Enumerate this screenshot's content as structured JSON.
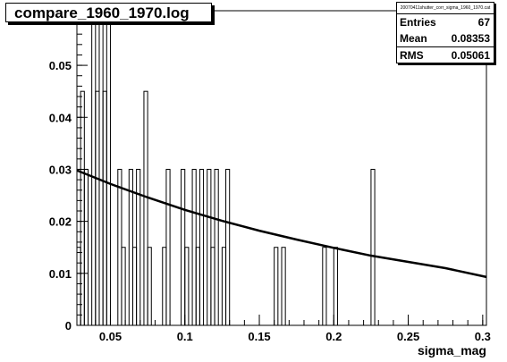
{
  "title": "compare_1960_1970.log",
  "stats": {
    "name": "20070411shutter_corr_sigma_1960_1970.cat",
    "rows": [
      {
        "label": "Entries",
        "value": "67"
      },
      {
        "label": "Mean",
        "value": "0.08353"
      },
      {
        "label": "RMS",
        "value": "0.05061"
      }
    ]
  },
  "chart_data": {
    "type": "histogram",
    "xlabel": "sigma_mag",
    "ylabel": "",
    "xlim": [
      0.0275,
      0.3025
    ],
    "ylim": [
      0,
      0.0605
    ],
    "xticks": [
      0.05,
      0.1,
      0.15,
      0.2,
      0.25,
      0.3
    ],
    "xtick_labels": [
      "0.05",
      "0.1",
      "0.15",
      "0.2",
      "0.25",
      "0.3"
    ],
    "yticks": [
      0,
      0.01,
      0.02,
      0.03,
      0.04,
      0.05,
      0.06
    ],
    "ytick_labels": [
      "0",
      "0.01",
      "0.02",
      "0.03",
      "0.04",
      "0.05",
      "0.06"
    ],
    "grid": false,
    "bin_edges": [
      0.0275,
      0.03,
      0.0325,
      0.035,
      0.0375,
      0.04,
      0.0425,
      0.045,
      0.0475,
      0.05,
      0.0525,
      0.055,
      0.0575,
      0.06,
      0.0625,
      0.065,
      0.0675,
      0.07,
      0.0725,
      0.075,
      0.0775,
      0.08,
      0.0825,
      0.085,
      0.0875,
      0.09,
      0.0925,
      0.095,
      0.0975,
      0.1,
      0.1025,
      0.105,
      0.1075,
      0.11,
      0.1125,
      0.115,
      0.1175,
      0.12,
      0.1225,
      0.125,
      0.1275,
      0.13,
      0.1325,
      0.135,
      0.1375,
      0.14,
      0.1425,
      0.145,
      0.1475,
      0.15,
      0.1525,
      0.155,
      0.1575,
      0.16,
      0.1625,
      0.165,
      0.1675,
      0.17,
      0.1725,
      0.175,
      0.1775,
      0.18,
      0.1825,
      0.185,
      0.1875,
      0.19,
      0.1925,
      0.195,
      0.1975,
      0.2,
      0.2025,
      0.205,
      0.2075,
      0.21,
      0.2125,
      0.215,
      0.2175,
      0.22,
      0.2225,
      0.225,
      0.2275
    ],
    "bin_values": [
      0.015,
      0.045,
      0.03,
      0.0,
      0.06,
      0.045,
      0.06,
      0.045,
      0.06,
      0.0,
      0.0,
      0.03,
      0.015,
      0.0,
      0.03,
      0.015,
      0.03,
      0.0,
      0.045,
      0.015,
      0.0,
      0.0,
      0.0,
      0.015,
      0.03,
      0.0,
      0.0,
      0.0,
      0.03,
      0.015,
      0.0,
      0.03,
      0.015,
      0.03,
      0.0,
      0.03,
      0.015,
      0.03,
      0.0,
      0.015,
      0.03,
      0.0,
      0.0,
      0.0,
      0.0,
      0.0,
      0.0,
      0.0,
      0.0,
      0.0,
      0.0,
      0.0,
      0.0,
      0.015,
      0.0,
      0.015,
      0.0,
      0.0,
      0.0,
      0.0,
      0.0,
      0.0,
      0.0,
      0.0,
      0.0,
      0.0,
      0.015,
      0.0,
      0.0,
      0.015,
      0.0,
      0.0,
      0.0,
      0.0,
      0.0,
      0.0,
      0.0,
      0.0,
      0.0,
      0.03
    ],
    "fit_curve": {
      "x": [
        0.0275,
        0.05,
        0.075,
        0.1,
        0.125,
        0.15,
        0.175,
        0.2,
        0.225,
        0.25,
        0.275,
        0.3025
      ],
      "y": [
        0.0298,
        0.0272,
        0.0246,
        0.0222,
        0.0201,
        0.0182,
        0.0165,
        0.0149,
        0.0134,
        0.0122,
        0.011,
        0.0093
      ]
    },
    "colors": {
      "histogram": "#000000",
      "fit": "#000000"
    }
  }
}
